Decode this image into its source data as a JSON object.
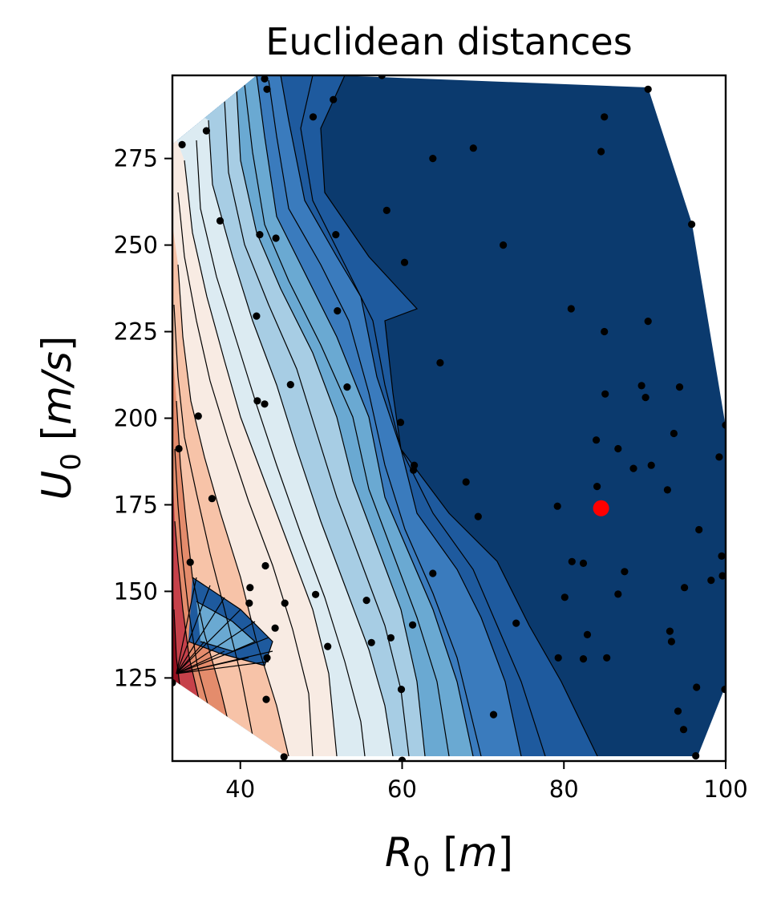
{
  "chart_data": {
    "type": "scatter",
    "title": "Euclidean distances",
    "xlabel": {
      "var": "R",
      "sub": "0",
      "unit": "m"
    },
    "ylabel": {
      "var": "U",
      "sub": "0",
      "unit": "m/s"
    },
    "xlim": [
      31.6,
      100
    ],
    "ylim": [
      101,
      299
    ],
    "xticks": [
      40,
      60,
      80,
      100
    ],
    "yticks": [
      125,
      150,
      175,
      200,
      225,
      250,
      275
    ],
    "colormap": "RdBu",
    "background_region": "filled contour of Euclidean distance (red = high, dark blue = low)",
    "samples": [
      [
        43,
        298
      ],
      [
        57.5,
        299
      ],
      [
        43.3,
        295
      ],
      [
        51.5,
        292
      ],
      [
        90.4,
        295
      ],
      [
        85,
        287
      ],
      [
        49,
        287
      ],
      [
        32.8,
        279
      ],
      [
        35.8,
        283
      ],
      [
        68.8,
        278
      ],
      [
        63.8,
        275
      ],
      [
        84.6,
        277
      ],
      [
        58.1,
        260
      ],
      [
        37.5,
        257
      ],
      [
        95.8,
        256
      ],
      [
        42.4,
        253
      ],
      [
        51.8,
        253
      ],
      [
        44.4,
        252
      ],
      [
        72.5,
        250
      ],
      [
        60.3,
        245
      ],
      [
        52,
        231
      ],
      [
        42,
        229.5
      ],
      [
        80.9,
        231.6
      ],
      [
        90.4,
        228
      ],
      [
        85,
        225
      ],
      [
        64.7,
        216
      ],
      [
        89.6,
        209.4
      ],
      [
        94.3,
        209
      ],
      [
        46.2,
        209.7
      ],
      [
        53.2,
        209
      ],
      [
        85.1,
        207
      ],
      [
        90.1,
        206
      ],
      [
        42.1,
        205
      ],
      [
        43,
        204.1
      ],
      [
        59.8,
        198.8
      ],
      [
        100,
        198
      ],
      [
        34.8,
        200.6
      ],
      [
        32.4,
        191.2
      ],
      [
        93.6,
        195.6
      ],
      [
        84,
        193.7
      ],
      [
        86.7,
        191.2
      ],
      [
        99.2,
        188.8
      ],
      [
        90.8,
        186.4
      ],
      [
        88.6,
        185.5
      ],
      [
        61.5,
        186.4
      ],
      [
        61.4,
        185
      ],
      [
        67.9,
        181.6
      ],
      [
        84.1,
        180.3
      ],
      [
        92.8,
        179.3
      ],
      [
        36.5,
        176.8
      ],
      [
        69.4,
        171.6
      ],
      [
        79.2,
        174.6
      ],
      [
        96.7,
        167.8
      ],
      [
        99.5,
        160.2
      ],
      [
        33.8,
        158.4
      ],
      [
        81,
        158.6
      ],
      [
        82.4,
        158.1
      ],
      [
        63.8,
        155.2
      ],
      [
        87.5,
        155.7
      ],
      [
        43.1,
        157.4
      ],
      [
        99.6,
        154.5
      ],
      [
        98.2,
        153.2
      ],
      [
        94.9,
        151.1
      ],
      [
        41.2,
        151.1
      ],
      [
        49.3,
        149.1
      ],
      [
        86.7,
        149.2
      ],
      [
        80.1,
        148.3
      ],
      [
        55.6,
        147.4
      ],
      [
        45.5,
        146.6
      ],
      [
        41.1,
        146.6
      ],
      [
        74.1,
        140.8
      ],
      [
        61.3,
        140.3
      ],
      [
        44.3,
        139.4
      ],
      [
        93.1,
        138.5
      ],
      [
        82.9,
        137.5
      ],
      [
        58.6,
        136.6
      ],
      [
        56.2,
        135.2
      ],
      [
        93.3,
        135.5
      ],
      [
        50.8,
        134.1
      ],
      [
        79.3,
        130.8
      ],
      [
        82.4,
        130.5
      ],
      [
        85.3,
        130.8
      ],
      [
        43.3,
        130.8
      ],
      [
        31.6,
        123.6
      ],
      [
        59.9,
        121.7
      ],
      [
        96.4,
        122.3
      ],
      [
        99.9,
        121.7
      ],
      [
        43.2,
        118.8
      ],
      [
        71.3,
        114.4
      ],
      [
        94.1,
        115.4
      ],
      [
        94.8,
        110.1
      ],
      [
        45.4,
        102.2
      ],
      [
        60,
        101.2
      ],
      [
        96.3,
        102.5
      ]
    ],
    "highlight_point": [
      84.6,
      174
    ],
    "point_color": "#000000",
    "highlight_color": "#ff0000",
    "grid": false
  }
}
